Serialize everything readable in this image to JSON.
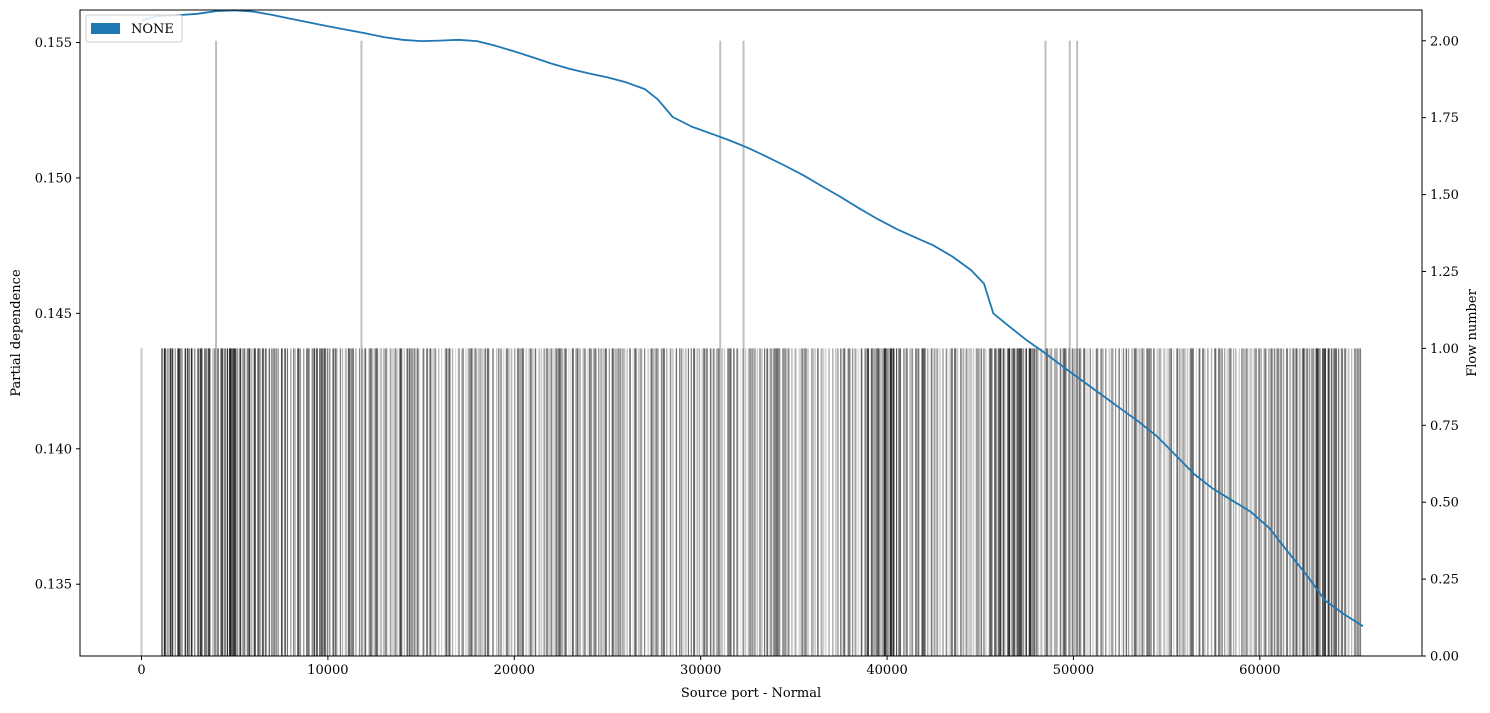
{
  "chart_data": {
    "type": "line",
    "title": "",
    "xlabel": "Source port - Normal",
    "ylabel": "Partial dependence",
    "y2label": "Flow number",
    "xlim": [
      -3300,
      68700
    ],
    "ylim": [
      0.13235,
      0.1562
    ],
    "y2lim": [
      0,
      2.1
    ],
    "xticks": [
      0,
      10000,
      20000,
      30000,
      40000,
      50000,
      60000
    ],
    "yticks": [
      0.135,
      0.14,
      0.145,
      0.15,
      0.155
    ],
    "ytick_labels": [
      "0.135",
      "0.140",
      "0.145",
      "0.150",
      "0.155"
    ],
    "y2ticks": [
      0,
      0.25,
      0.5,
      0.75,
      1.0,
      1.25,
      1.5,
      1.75,
      2.0
    ],
    "y2tick_labels": [
      "0.00",
      "0.25",
      "0.50",
      "0.75",
      "1.00",
      "1.25",
      "1.50",
      "1.75",
      "2.00"
    ],
    "legend": {
      "placement": "top-left",
      "entries": [
        {
          "label": "NONE",
          "color": "#1f77b4"
        }
      ]
    },
    "grid": false,
    "series": [
      {
        "name": "NONE",
        "color": "#1f77b4",
        "x": [
          0,
          500,
          1000,
          2000,
          3000,
          4000,
          5000,
          6000,
          7000,
          8000,
          9000,
          10000,
          11000,
          12000,
          13000,
          14000,
          15000,
          16000,
          17000,
          18000,
          19000,
          20000,
          21000,
          22000,
          23000,
          24000,
          25000,
          26000,
          27000,
          27700,
          28500,
          29500,
          30500,
          31500,
          32500,
          33500,
          34500,
          35500,
          36500,
          37500,
          38500,
          39500,
          40500,
          41500,
          42500,
          43500,
          44500,
          45200,
          45700,
          46500,
          47500,
          48500,
          49500,
          50500,
          51500,
          52500,
          53500,
          54500,
          55500,
          56500,
          57500,
          58500,
          59500,
          60500,
          61500,
          62500,
          63500,
          64500,
          65535
        ],
        "y": [
          0.1558,
          0.15592,
          0.15598,
          0.15601,
          0.15606,
          0.15616,
          0.15619,
          0.15614,
          0.15602,
          0.15588,
          0.15574,
          0.1556,
          0.15547,
          0.15534,
          0.1552,
          0.1551,
          0.15505,
          0.15507,
          0.1551,
          0.15505,
          0.15488,
          0.15467,
          0.15445,
          0.15422,
          0.15402,
          0.15386,
          0.15371,
          0.15353,
          0.15328,
          0.1529,
          0.15225,
          0.1519,
          0.15165,
          0.1514,
          0.15112,
          0.1508,
          0.15046,
          0.1501,
          0.1497,
          0.1493,
          0.14888,
          0.14848,
          0.14812,
          0.14781,
          0.1475,
          0.1471,
          0.1466,
          0.1461,
          0.145,
          0.14455,
          0.144,
          0.14352,
          0.143,
          0.1425,
          0.142,
          0.1415,
          0.141,
          0.14045,
          0.13975,
          0.13905,
          0.13852,
          0.1381,
          0.13768,
          0.13708,
          0.1362,
          0.13535,
          0.1344,
          0.1339,
          0.13345
        ]
      }
    ],
    "rug": {
      "color": "#000000",
      "count_axis": "y2",
      "high_x": [
        4000,
        11800,
        31050,
        32300,
        48500,
        49800,
        50200
      ],
      "high_value": 2.0,
      "base_value": 1.0,
      "range": [
        0,
        65535
      ]
    }
  }
}
